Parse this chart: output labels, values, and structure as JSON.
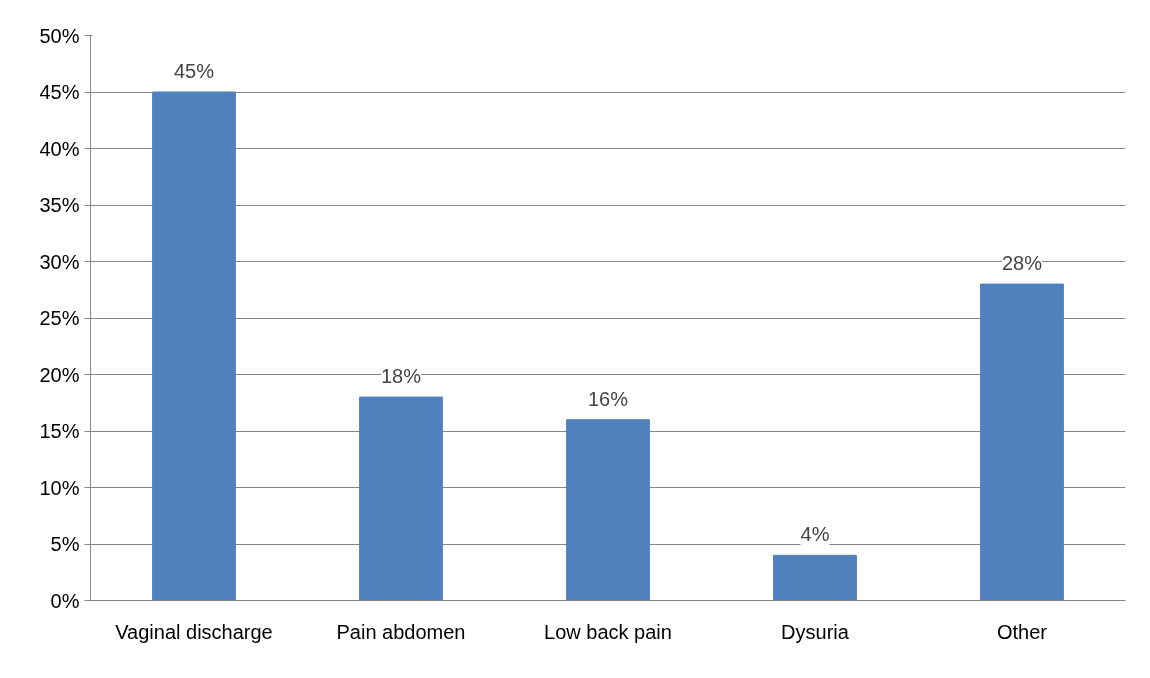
{
  "chart_data": {
    "type": "bar",
    "categories": [
      "Vaginal discharge",
      "Pain abdomen",
      "Low back pain",
      "Dysuria",
      "Other"
    ],
    "values": [
      45,
      18,
      16,
      4,
      28
    ],
    "color": "#4f81bd",
    "value_labels": [
      "45%",
      "18%",
      "16%",
      "4%",
      "28%"
    ],
    "ylim": [
      0,
      50
    ],
    "yticks": [
      {
        "value": 0,
        "label": "0%"
      },
      {
        "value": 5,
        "label": "5%"
      },
      {
        "value": 10,
        "label": "10%"
      },
      {
        "value": 15,
        "label": "15%"
      },
      {
        "value": 20,
        "label": "20%"
      },
      {
        "value": 25,
        "label": "25%"
      },
      {
        "value": 30,
        "label": "30%"
      },
      {
        "value": 35,
        "label": "35%"
      },
      {
        "value": 40,
        "label": "40%"
      },
      {
        "value": 45,
        "label": "45%"
      },
      {
        "value": 50,
        "label": "50%"
      }
    ],
    "grid": "y"
  }
}
